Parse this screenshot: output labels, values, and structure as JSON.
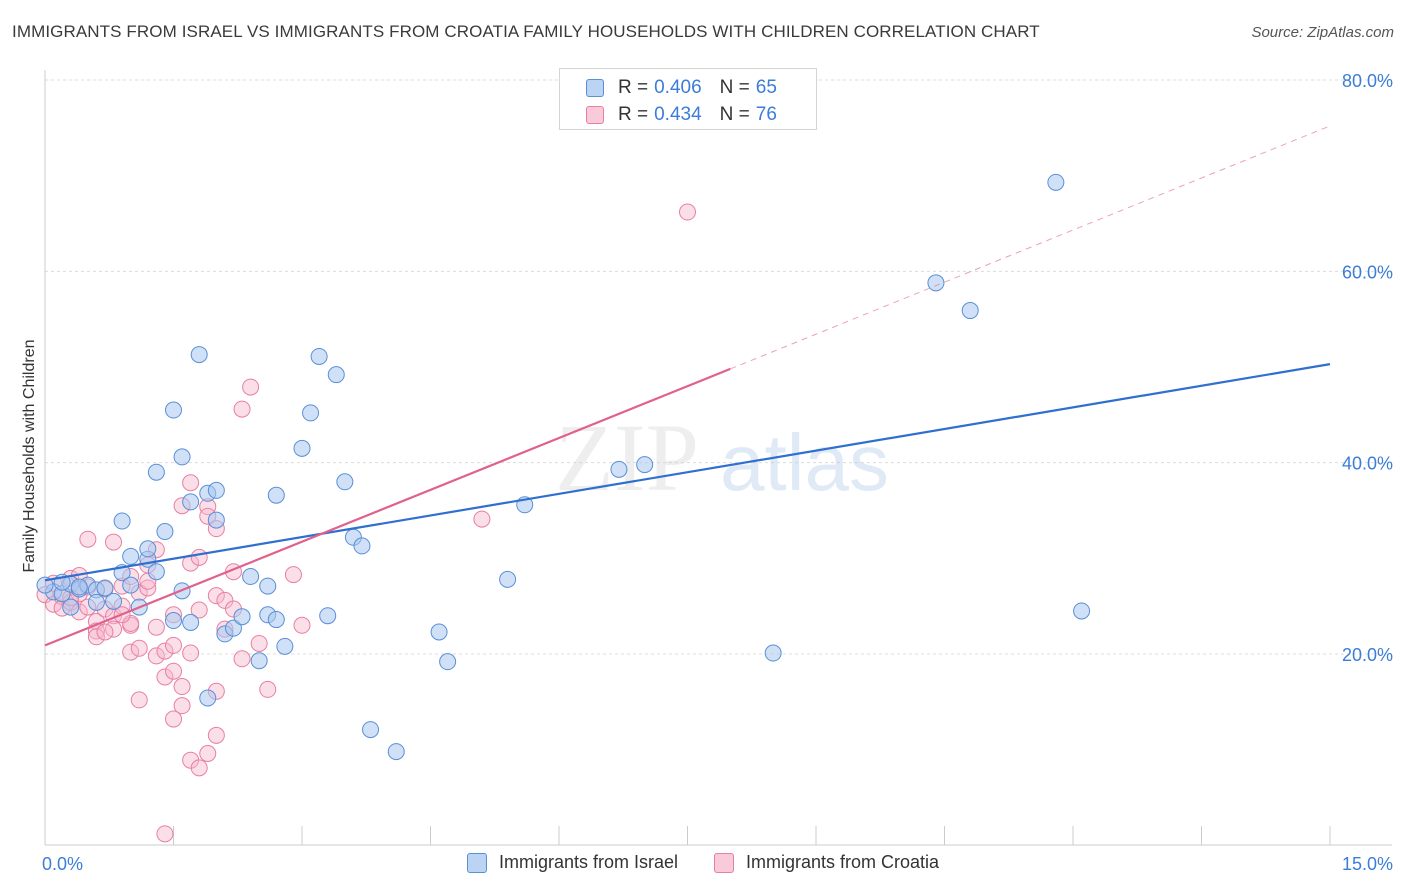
{
  "header": {
    "title": "IMMIGRANTS FROM ISRAEL VS IMMIGRANTS FROM CROATIA FAMILY HOUSEHOLDS WITH CHILDREN CORRELATION CHART",
    "source": "Source: ZipAtlas.com"
  },
  "legend": {
    "israel": {
      "r_label": "R =",
      "r_value": "0.406",
      "n_label": "N =",
      "n_value": "65"
    },
    "croatia": {
      "r_label": "R =",
      "r_value": "0.434",
      "n_label": "N =",
      "n_value": "76"
    }
  },
  "colors": {
    "israel_fill": "#a9c8f0",
    "israel_stroke": "#5a8fd6",
    "israel_line": "#2f6fcf",
    "croatia_fill": "#f6b9cc",
    "croatia_stroke": "#e87fa3",
    "croatia_line": "#e0628c",
    "axis_text": "#3b7dd8",
    "grid": "#dcdcdc"
  },
  "watermark": {
    "zip": "ZIP",
    "atlas": "atlas"
  },
  "chart_data": {
    "type": "scatter",
    "title": "IMMIGRANTS FROM ISRAEL VS IMMIGRANTS FROM CROATIA FAMILY HOUSEHOLDS WITH CHILDREN CORRELATION CHART",
    "xlabel": "",
    "ylabel": "Family Households with Children",
    "xlim": [
      0,
      15
    ],
    "ylim": [
      0,
      82
    ],
    "x_tick_labels": [
      "0.0%",
      "15.0%"
    ],
    "y_ticks": [
      20,
      40,
      60,
      80
    ],
    "y_tick_labels": [
      "20.0%",
      "40.0%",
      "60.0%",
      "80.0%"
    ],
    "grid": true,
    "legend_position": "top-center",
    "series": [
      {
        "name": "Immigrants from Israel",
        "trend": {
          "x0": 0,
          "y0": 27.7,
          "x1": 15,
          "y1": 50.3
        },
        "points": [
          [
            0.1,
            26.5
          ],
          [
            0.2,
            26.3
          ],
          [
            0.3,
            27.3
          ],
          [
            0.4,
            26.8
          ],
          [
            0.5,
            27.2
          ],
          [
            0.3,
            24.9
          ],
          [
            0.6,
            26.7
          ],
          [
            0.7,
            26.9
          ],
          [
            0.8,
            25.5
          ],
          [
            0.9,
            28.5
          ],
          [
            1.0,
            27.2
          ],
          [
            1.1,
            24.9
          ],
          [
            1.2,
            29.9
          ],
          [
            1.3,
            28.6
          ],
          [
            1.2,
            31.0
          ],
          [
            0.9,
            33.9
          ],
          [
            1.0,
            30.2
          ],
          [
            1.4,
            32.8
          ],
          [
            1.3,
            39.0
          ],
          [
            1.5,
            45.5
          ],
          [
            1.6,
            40.6
          ],
          [
            1.8,
            51.3
          ],
          [
            1.7,
            35.9
          ],
          [
            1.9,
            36.8
          ],
          [
            2.0,
            37.1
          ],
          [
            2.0,
            34.0
          ],
          [
            1.6,
            26.6
          ],
          [
            1.5,
            23.5
          ],
          [
            1.7,
            23.3
          ],
          [
            2.1,
            22.1
          ],
          [
            2.2,
            22.7
          ],
          [
            2.3,
            23.9
          ],
          [
            2.4,
            28.1
          ],
          [
            2.5,
            19.3
          ],
          [
            2.6,
            27.1
          ],
          [
            2.6,
            24.1
          ],
          [
            2.7,
            23.6
          ],
          [
            2.8,
            20.8
          ],
          [
            2.7,
            36.6
          ],
          [
            3.0,
            41.5
          ],
          [
            3.1,
            45.2
          ],
          [
            3.2,
            51.1
          ],
          [
            3.4,
            49.2
          ],
          [
            3.3,
            24.0
          ],
          [
            3.5,
            38.0
          ],
          [
            3.6,
            32.2
          ],
          [
            3.7,
            31.3
          ],
          [
            3.8,
            12.1
          ],
          [
            4.1,
            9.8
          ],
          [
            4.6,
            22.3
          ],
          [
            4.7,
            19.2
          ],
          [
            5.4,
            27.8
          ],
          [
            5.6,
            35.6
          ],
          [
            6.7,
            39.3
          ],
          [
            7.0,
            39.8
          ],
          [
            8.5,
            20.1
          ],
          [
            10.4,
            58.8
          ],
          [
            10.8,
            55.9
          ],
          [
            11.8,
            69.3
          ],
          [
            12.1,
            24.5
          ],
          [
            1.9,
            15.4
          ],
          [
            0.2,
            27.5
          ],
          [
            0.4,
            27.0
          ],
          [
            0.6,
            25.4
          ],
          [
            0.0,
            27.2
          ]
        ]
      },
      {
        "name": "Immigrants from Croatia",
        "trend": {
          "x0": 0,
          "y0": 20.9,
          "x1": 8.0,
          "y1": 49.8,
          "dash_x1": 15,
          "dash_y1": 75.2
        },
        "points": [
          [
            0.0,
            26.2
          ],
          [
            0.1,
            25.2
          ],
          [
            0.1,
            27.4
          ],
          [
            0.2,
            26.0
          ],
          [
            0.2,
            24.8
          ],
          [
            0.3,
            25.4
          ],
          [
            0.3,
            27.9
          ],
          [
            0.4,
            26.3
          ],
          [
            0.4,
            24.4
          ],
          [
            0.5,
            24.9
          ],
          [
            0.5,
            27.0
          ],
          [
            0.6,
            23.4
          ],
          [
            0.6,
            22.4
          ],
          [
            0.7,
            24.7
          ],
          [
            0.7,
            26.8
          ],
          [
            0.8,
            24.0
          ],
          [
            0.8,
            22.6
          ],
          [
            0.9,
            27.1
          ],
          [
            0.9,
            25.0
          ],
          [
            1.0,
            23.0
          ],
          [
            1.0,
            20.2
          ],
          [
            1.1,
            20.6
          ],
          [
            1.1,
            26.4
          ],
          [
            1.2,
            29.3
          ],
          [
            1.2,
            26.9
          ],
          [
            1.3,
            22.8
          ],
          [
            1.3,
            19.8
          ],
          [
            1.4,
            17.6
          ],
          [
            1.4,
            20.3
          ],
          [
            1.5,
            24.1
          ],
          [
            1.5,
            18.2
          ],
          [
            1.6,
            16.6
          ],
          [
            1.6,
            35.5
          ],
          [
            1.7,
            37.9
          ],
          [
            1.7,
            29.5
          ],
          [
            1.8,
            30.1
          ],
          [
            1.9,
            35.4
          ],
          [
            1.9,
            34.4
          ],
          [
            2.0,
            33.1
          ],
          [
            2.0,
            26.1
          ],
          [
            2.1,
            25.6
          ],
          [
            2.1,
            22.6
          ],
          [
            2.2,
            24.7
          ],
          [
            2.3,
            19.5
          ],
          [
            2.3,
            45.6
          ],
          [
            2.4,
            47.9
          ],
          [
            2.5,
            21.1
          ],
          [
            2.6,
            16.3
          ],
          [
            2.9,
            28.3
          ],
          [
            3.0,
            23.0
          ],
          [
            0.8,
            31.7
          ],
          [
            0.5,
            32.0
          ],
          [
            1.0,
            23.2
          ],
          [
            1.1,
            15.2
          ],
          [
            1.5,
            13.2
          ],
          [
            1.6,
            14.6
          ],
          [
            1.7,
            8.9
          ],
          [
            1.8,
            8.1
          ],
          [
            1.9,
            9.6
          ],
          [
            2.0,
            11.5
          ],
          [
            1.4,
            1.2
          ],
          [
            0.3,
            25.9
          ],
          [
            0.6,
            21.8
          ],
          [
            1.3,
            30.9
          ],
          [
            1.8,
            24.6
          ],
          [
            2.2,
            28.6
          ],
          [
            5.1,
            34.1
          ],
          [
            7.5,
            66.2
          ],
          [
            1.2,
            27.6
          ],
          [
            0.9,
            24.1
          ],
          [
            2.0,
            16.1
          ],
          [
            1.0,
            28.1
          ],
          [
            0.7,
            22.3
          ],
          [
            1.5,
            20.9
          ],
          [
            1.7,
            20.1
          ],
          [
            0.4,
            28.2
          ]
        ]
      }
    ]
  },
  "bottom_legend": {
    "israel": "Immigrants from Israel",
    "croatia": "Immigrants from Croatia"
  }
}
